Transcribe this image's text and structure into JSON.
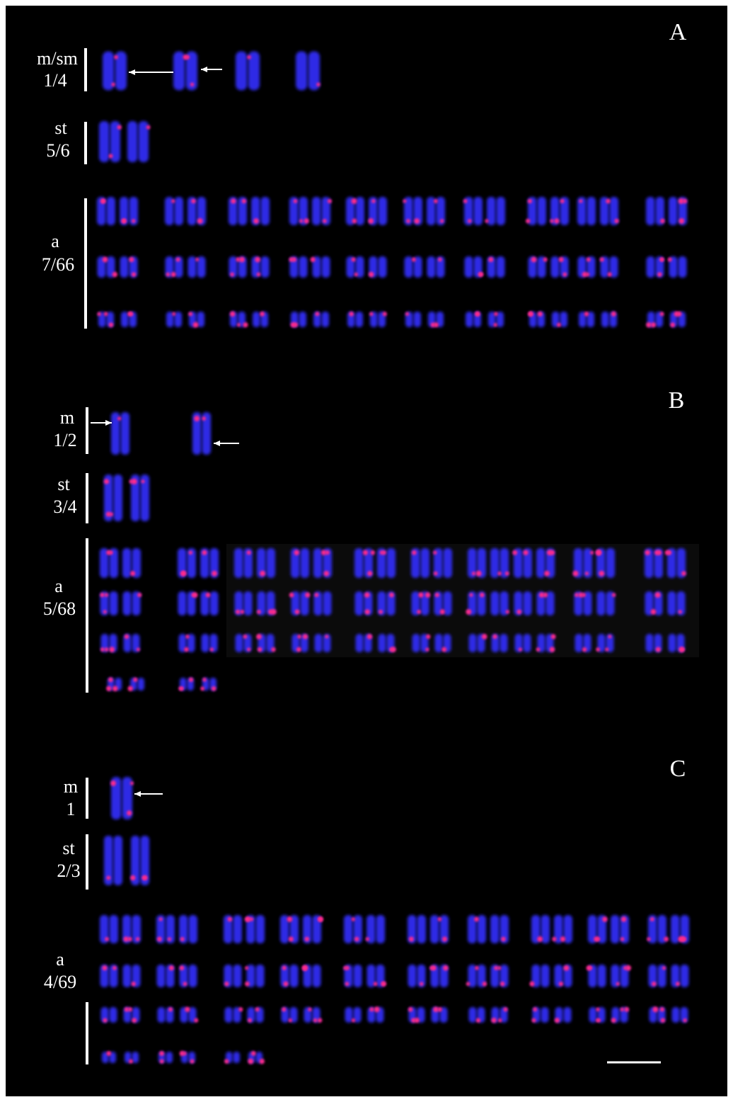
{
  "panels": [
    {
      "letter": "A",
      "groups": [
        {
          "label": "m/sm",
          "count": "1/4"
        },
        {
          "label": "st",
          "count": "5/6"
        },
        {
          "label": "a",
          "count": "7/66"
        }
      ]
    },
    {
      "letter": "B",
      "groups": [
        {
          "label": "m",
          "count": "1/2"
        },
        {
          "label": "st",
          "count": "3/4"
        },
        {
          "label": "a",
          "count": "5/68"
        }
      ]
    },
    {
      "letter": "C",
      "groups": [
        {
          "label": "m",
          "count": "1"
        },
        {
          "label": "st",
          "count": "2/3"
        },
        {
          "label": "a",
          "count": "4/69"
        }
      ]
    }
  ]
}
